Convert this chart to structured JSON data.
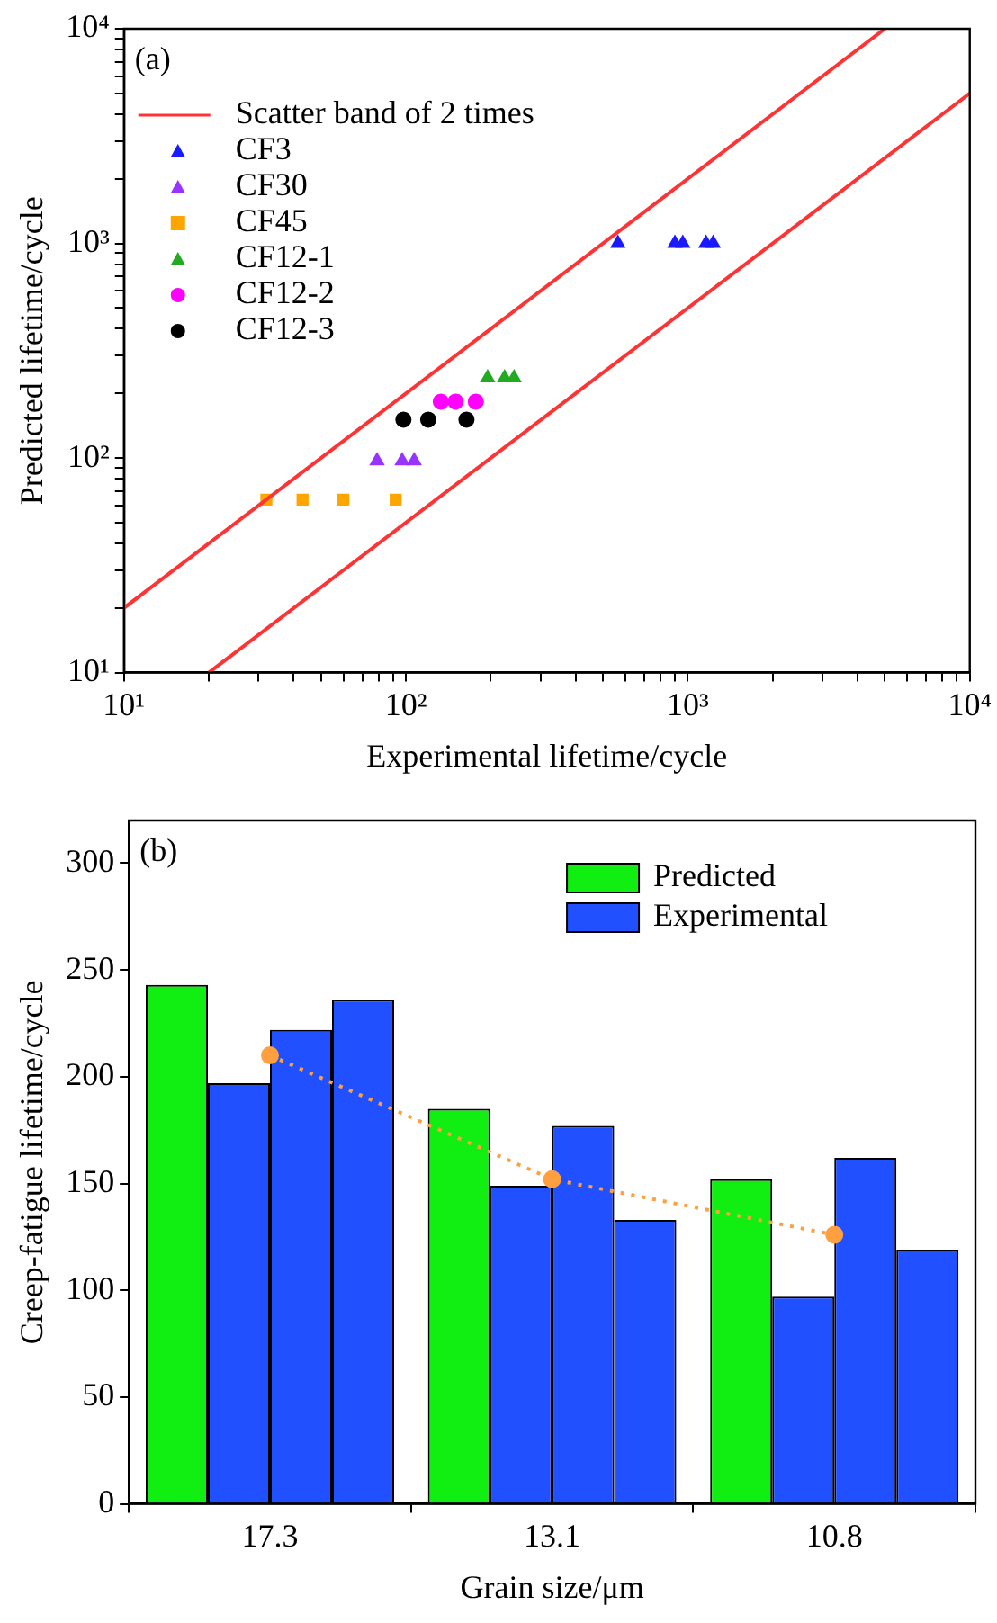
{
  "chart_data": [
    {
      "type": "scatter",
      "xlabel": "Experimental lifetime/cycle",
      "ylabel": "Predicted lifetime/cycle",
      "annotations": [
        "(a)"
      ],
      "log": "xy",
      "legend": "top left",
      "grid": false,
      "xlim": [
        10,
        10000
      ],
      "ylim": [
        10,
        10000
      ],
      "xticks": [
        {
          "value": 10,
          "label": "10¹"
        },
        {
          "value": 20,
          "label": null
        },
        {
          "value": 30,
          "label": null
        },
        {
          "value": 40,
          "label": null
        },
        {
          "value": 50,
          "label": null
        },
        {
          "value": 60,
          "label": null
        },
        {
          "value": 70,
          "label": null
        },
        {
          "value": 80,
          "label": null
        },
        {
          "value": 90,
          "label": null
        },
        {
          "value": 100,
          "label": "10²"
        },
        {
          "value": 200,
          "label": null
        },
        {
          "value": 300,
          "label": null
        },
        {
          "value": 400,
          "label": null
        },
        {
          "value": 500,
          "label": null
        },
        {
          "value": 600,
          "label": null
        },
        {
          "value": 700,
          "label": null
        },
        {
          "value": 800,
          "label": null
        },
        {
          "value": 900,
          "label": null
        },
        {
          "value": 1000,
          "label": "10³"
        },
        {
          "value": 2000,
          "label": null
        },
        {
          "value": 3000,
          "label": null
        },
        {
          "value": 4000,
          "label": null
        },
        {
          "value": 5000,
          "label": null
        },
        {
          "value": 6000,
          "label": null
        },
        {
          "value": 7000,
          "label": null
        },
        {
          "value": 8000,
          "label": null
        },
        {
          "value": 9000,
          "label": null
        },
        {
          "value": 10000,
          "label": "10⁴"
        }
      ],
      "yticks": [
        {
          "value": 10,
          "label": "10¹"
        },
        {
          "value": 20,
          "label": null
        },
        {
          "value": 30,
          "label": null
        },
        {
          "value": 40,
          "label": null
        },
        {
          "value": 50,
          "label": null
        },
        {
          "value": 60,
          "label": null
        },
        {
          "value": 70,
          "label": null
        },
        {
          "value": 80,
          "label": null
        },
        {
          "value": 90,
          "label": null
        },
        {
          "value": 100,
          "label": "10²"
        },
        {
          "value": 200,
          "label": null
        },
        {
          "value": 300,
          "label": null
        },
        {
          "value": 400,
          "label": null
        },
        {
          "value": 500,
          "label": null
        },
        {
          "value": 600,
          "label": null
        },
        {
          "value": 700,
          "label": null
        },
        {
          "value": 800,
          "label": null
        },
        {
          "value": 900,
          "label": null
        },
        {
          "value": 1000,
          "label": "10³"
        },
        {
          "value": 2000,
          "label": null
        },
        {
          "value": 3000,
          "label": null
        },
        {
          "value": 4000,
          "label": null
        },
        {
          "value": 5000,
          "label": null
        },
        {
          "value": 6000,
          "label": null
        },
        {
          "value": 7000,
          "label": null
        },
        {
          "value": 8000,
          "label": null
        },
        {
          "value": 9000,
          "label": null
        },
        {
          "value": 10000,
          "label": "10⁴"
        }
      ],
      "series": [
        {
          "name": "Scatter band of 2 times",
          "type": "line",
          "color": "#ff3333",
          "marker": "none",
          "x": [
            10,
            5000
          ],
          "values": [
            20,
            10000
          ]
        },
        {
          "type": "line",
          "color": "#ff3333",
          "marker": "none",
          "x": [
            20,
            10000
          ],
          "values": [
            10,
            5000
          ]
        },
        {
          "name": "CF3",
          "color": "#1a1aff",
          "marker": "triangle",
          "x": [
            565,
            900,
            960,
            1160,
            1230
          ],
          "values": [
            1000,
            1000,
            1000,
            1000,
            1000
          ]
        },
        {
          "name": "CF30",
          "color": "#9933ff",
          "marker": "triangle",
          "x": [
            79,
            97,
            107
          ],
          "values": [
            97,
            97,
            97
          ]
        },
        {
          "name": "CF45",
          "color": "#ffa500",
          "marker": "square",
          "x": [
            32,
            43,
            60,
            92
          ],
          "values": [
            64,
            64,
            64,
            64
          ]
        },
        {
          "name": "CF12-1",
          "color": "#22aa22",
          "marker": "triangle",
          "x": [
            195,
            224,
            242
          ],
          "values": [
            236,
            236,
            236
          ]
        },
        {
          "name": "CF12-2",
          "color": "#ff00ff",
          "marker": "circle",
          "x": [
            133,
            150,
            177
          ],
          "values": [
            183,
            183,
            183
          ]
        },
        {
          "name": "CF12-3",
          "color": "#000000",
          "marker": "circle",
          "x": [
            98,
            120,
            164
          ],
          "values": [
            151,
            151,
            151
          ]
        }
      ]
    },
    {
      "type": "bar",
      "xlabel": "Grain size/μm",
      "ylabel": "Creep-fatigue lifetime/cycle",
      "annotations": [
        "(b)"
      ],
      "legend": "top right",
      "grid": false,
      "categories": [
        "17.3",
        "13.1",
        "10.8"
      ],
      "ylim": [
        0,
        320
      ],
      "yticks": [
        0,
        50,
        100,
        150,
        200,
        250,
        300
      ],
      "series": [
        {
          "name": "Predicted",
          "color": "#11ee11",
          "values": [
            243,
            185,
            152
          ]
        },
        {
          "name": "Experimental",
          "color": "#2050ff",
          "values": [
            197,
            149,
            97
          ]
        },
        {
          "color": "#2050ff",
          "values": [
            222,
            177,
            162
          ]
        },
        {
          "color": "#2050ff",
          "values": [
            236,
            133,
            119
          ]
        },
        {
          "type": "line",
          "color": "#ffa040",
          "marker": "circle",
          "line_style": "dotted",
          "x": [
            "17.3",
            "13.1",
            "10.8"
          ],
          "values": [
            210,
            152,
            126
          ]
        }
      ]
    }
  ]
}
